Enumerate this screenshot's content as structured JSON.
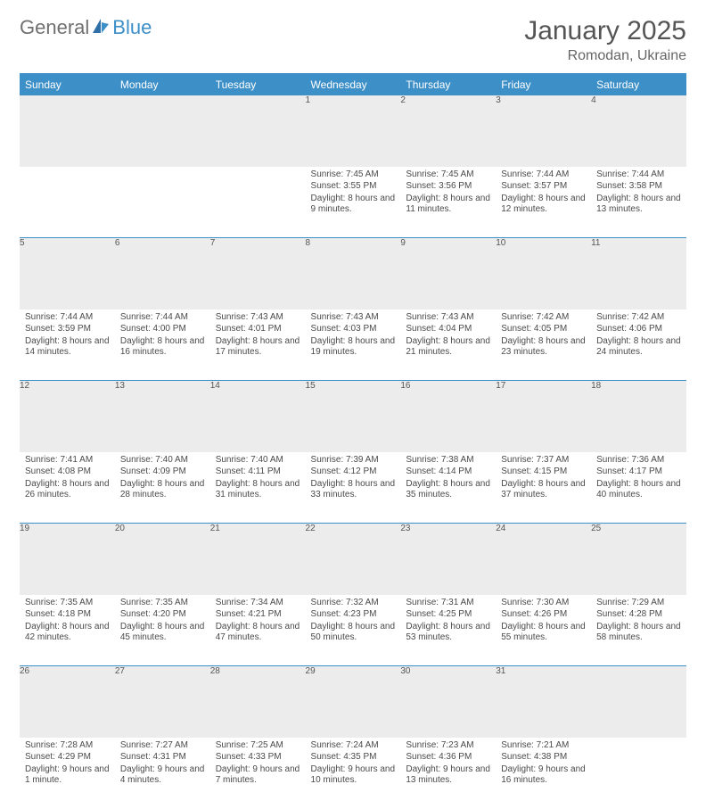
{
  "brand": {
    "part1": "General",
    "part2": "Blue"
  },
  "title": "January 2025",
  "location": "Romodan, Ukraine",
  "colors": {
    "accent": "#3d8fc8",
    "header_bg": "#3d8fc8",
    "daynum_bg": "#ececec",
    "text": "#4a4a4a",
    "background": "#ffffff"
  },
  "weekdays": [
    "Sunday",
    "Monday",
    "Tuesday",
    "Wednesday",
    "Thursday",
    "Friday",
    "Saturday"
  ],
  "weeks": [
    [
      {
        "n": "",
        "sr": "",
        "ss": "",
        "dl": ""
      },
      {
        "n": "",
        "sr": "",
        "ss": "",
        "dl": ""
      },
      {
        "n": "",
        "sr": "",
        "ss": "",
        "dl": ""
      },
      {
        "n": "1",
        "sr": "7:45 AM",
        "ss": "3:55 PM",
        "dl": "8 hours and 9 minutes."
      },
      {
        "n": "2",
        "sr": "7:45 AM",
        "ss": "3:56 PM",
        "dl": "8 hours and 11 minutes."
      },
      {
        "n": "3",
        "sr": "7:44 AM",
        "ss": "3:57 PM",
        "dl": "8 hours and 12 minutes."
      },
      {
        "n": "4",
        "sr": "7:44 AM",
        "ss": "3:58 PM",
        "dl": "8 hours and 13 minutes."
      }
    ],
    [
      {
        "n": "5",
        "sr": "7:44 AM",
        "ss": "3:59 PM",
        "dl": "8 hours and 14 minutes."
      },
      {
        "n": "6",
        "sr": "7:44 AM",
        "ss": "4:00 PM",
        "dl": "8 hours and 16 minutes."
      },
      {
        "n": "7",
        "sr": "7:43 AM",
        "ss": "4:01 PM",
        "dl": "8 hours and 17 minutes."
      },
      {
        "n": "8",
        "sr": "7:43 AM",
        "ss": "4:03 PM",
        "dl": "8 hours and 19 minutes."
      },
      {
        "n": "9",
        "sr": "7:43 AM",
        "ss": "4:04 PM",
        "dl": "8 hours and 21 minutes."
      },
      {
        "n": "10",
        "sr": "7:42 AM",
        "ss": "4:05 PM",
        "dl": "8 hours and 23 minutes."
      },
      {
        "n": "11",
        "sr": "7:42 AM",
        "ss": "4:06 PM",
        "dl": "8 hours and 24 minutes."
      }
    ],
    [
      {
        "n": "12",
        "sr": "7:41 AM",
        "ss": "4:08 PM",
        "dl": "8 hours and 26 minutes."
      },
      {
        "n": "13",
        "sr": "7:40 AM",
        "ss": "4:09 PM",
        "dl": "8 hours and 28 minutes."
      },
      {
        "n": "14",
        "sr": "7:40 AM",
        "ss": "4:11 PM",
        "dl": "8 hours and 31 minutes."
      },
      {
        "n": "15",
        "sr": "7:39 AM",
        "ss": "4:12 PM",
        "dl": "8 hours and 33 minutes."
      },
      {
        "n": "16",
        "sr": "7:38 AM",
        "ss": "4:14 PM",
        "dl": "8 hours and 35 minutes."
      },
      {
        "n": "17",
        "sr": "7:37 AM",
        "ss": "4:15 PM",
        "dl": "8 hours and 37 minutes."
      },
      {
        "n": "18",
        "sr": "7:36 AM",
        "ss": "4:17 PM",
        "dl": "8 hours and 40 minutes."
      }
    ],
    [
      {
        "n": "19",
        "sr": "7:35 AM",
        "ss": "4:18 PM",
        "dl": "8 hours and 42 minutes."
      },
      {
        "n": "20",
        "sr": "7:35 AM",
        "ss": "4:20 PM",
        "dl": "8 hours and 45 minutes."
      },
      {
        "n": "21",
        "sr": "7:34 AM",
        "ss": "4:21 PM",
        "dl": "8 hours and 47 minutes."
      },
      {
        "n": "22",
        "sr": "7:32 AM",
        "ss": "4:23 PM",
        "dl": "8 hours and 50 minutes."
      },
      {
        "n": "23",
        "sr": "7:31 AM",
        "ss": "4:25 PM",
        "dl": "8 hours and 53 minutes."
      },
      {
        "n": "24",
        "sr": "7:30 AM",
        "ss": "4:26 PM",
        "dl": "8 hours and 55 minutes."
      },
      {
        "n": "25",
        "sr": "7:29 AM",
        "ss": "4:28 PM",
        "dl": "8 hours and 58 minutes."
      }
    ],
    [
      {
        "n": "26",
        "sr": "7:28 AM",
        "ss": "4:29 PM",
        "dl": "9 hours and 1 minute."
      },
      {
        "n": "27",
        "sr": "7:27 AM",
        "ss": "4:31 PM",
        "dl": "9 hours and 4 minutes."
      },
      {
        "n": "28",
        "sr": "7:25 AM",
        "ss": "4:33 PM",
        "dl": "9 hours and 7 minutes."
      },
      {
        "n": "29",
        "sr": "7:24 AM",
        "ss": "4:35 PM",
        "dl": "9 hours and 10 minutes."
      },
      {
        "n": "30",
        "sr": "7:23 AM",
        "ss": "4:36 PM",
        "dl": "9 hours and 13 minutes."
      },
      {
        "n": "31",
        "sr": "7:21 AM",
        "ss": "4:38 PM",
        "dl": "9 hours and 16 minutes."
      },
      {
        "n": "",
        "sr": "",
        "ss": "",
        "dl": ""
      }
    ]
  ],
  "labels": {
    "sunrise": "Sunrise:",
    "sunset": "Sunset:",
    "daylight": "Daylight:"
  }
}
